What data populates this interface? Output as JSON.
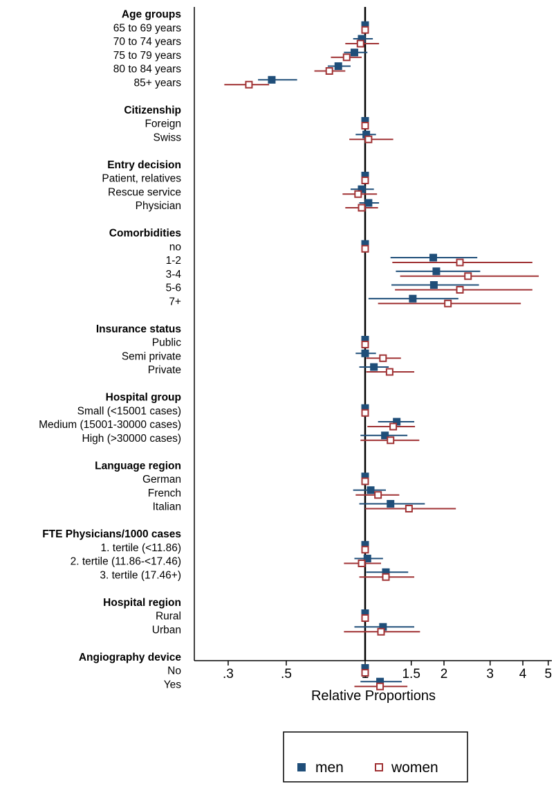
{
  "colors": {
    "men": "#1f4e79",
    "women": "#a03234"
  },
  "chart_data": {
    "type": "forest",
    "xlabel": "Relative Proportions",
    "x_scale": "log",
    "xlim": [
      0.24,
      5.1
    ],
    "x_ticks": [
      0.3,
      0.5,
      1,
      1.5,
      2,
      3,
      4,
      5
    ],
    "x_tick_labels": [
      ".3",
      ".5",
      "1",
      "1.5",
      "2",
      "3",
      "4",
      "5"
    ],
    "reference_line": 1,
    "legend": {
      "position": "bottom",
      "entries": [
        "men",
        "women"
      ]
    },
    "groups": [
      {
        "title": "Age groups",
        "rows": [
          {
            "label": "65 to 69 years",
            "men": [
              1.0,
              1.0,
              1.0
            ],
            "women": [
              1.0,
              1.0,
              1.0
            ]
          },
          {
            "label": "70 to 74 years",
            "men": [
              0.97,
              0.9,
              1.07
            ],
            "women": [
              0.96,
              0.84,
              1.13
            ]
          },
          {
            "label": "75 to 79 years",
            "men": [
              0.91,
              0.83,
              1.02
            ],
            "women": [
              0.85,
              0.74,
              0.97
            ]
          },
          {
            "label": "80 to 84 years",
            "men": [
              0.79,
              0.72,
              0.88
            ],
            "women": [
              0.73,
              0.64,
              0.84
            ]
          },
          {
            "label": "85+ years",
            "men": [
              0.44,
              0.39,
              0.55
            ],
            "women": [
              0.36,
              0.29,
              0.43
            ]
          }
        ]
      },
      {
        "title": "Citizenship",
        "rows": [
          {
            "label": "Foreign",
            "men": [
              1.0,
              1.0,
              1.0
            ],
            "women": [
              1.0,
              1.0,
              1.0
            ]
          },
          {
            "label": "Swiss",
            "men": [
              1.01,
              0.92,
              1.1
            ],
            "women": [
              1.03,
              0.87,
              1.28
            ]
          }
        ]
      },
      {
        "title": "Entry decision",
        "rows": [
          {
            "label": "Patient, relatives",
            "men": [
              1.0,
              1.0,
              1.0
            ],
            "women": [
              1.0,
              1.0,
              1.0
            ]
          },
          {
            "label": "Rescue service",
            "men": [
              0.97,
              0.88,
              1.08
            ],
            "women": [
              0.94,
              0.82,
              1.11
            ]
          },
          {
            "label": "Physician",
            "men": [
              1.03,
              0.95,
              1.13
            ],
            "women": [
              0.97,
              0.84,
              1.12
            ]
          }
        ]
      },
      {
        "title": "Comorbidities",
        "rows": [
          {
            "label": "no",
            "men": [
              1.0,
              1.0,
              1.0
            ],
            "women": [
              1.0,
              1.0,
              1.0
            ]
          },
          {
            "label": "1-2",
            "men": [
              1.82,
              1.25,
              2.68
            ],
            "women": [
              2.3,
              1.27,
              4.35
            ]
          },
          {
            "label": "3-4",
            "men": [
              1.87,
              1.31,
              2.75
            ],
            "women": [
              2.47,
              1.36,
              4.6
            ]
          },
          {
            "label": "5-6",
            "men": [
              1.83,
              1.26,
              2.72
            ],
            "women": [
              2.3,
              1.3,
              4.35
            ]
          },
          {
            "label": "7+",
            "men": [
              1.52,
              1.03,
              2.27
            ],
            "women": [
              2.07,
              1.12,
              3.93
            ]
          }
        ]
      },
      {
        "title": "Insurance status",
        "rows": [
          {
            "label": "Public",
            "men": [
              1.0,
              1.0,
              1.0
            ],
            "women": [
              1.0,
              1.0,
              1.0
            ]
          },
          {
            "label": "Semi private",
            "men": [
              1.0,
              0.92,
              1.1
            ],
            "women": [
              1.17,
              1.01,
              1.37
            ]
          },
          {
            "label": "Private",
            "men": [
              1.08,
              0.95,
              1.23
            ],
            "women": [
              1.24,
              1.01,
              1.54
            ]
          }
        ]
      },
      {
        "title": "Hospital group",
        "rows": [
          {
            "label": "Small (<15001 cases)",
            "men": [
              1.0,
              1.0,
              1.0
            ],
            "women": [
              1.0,
              1.0,
              1.0
            ]
          },
          {
            "label": "Medium (15001-30000 cases)",
            "men": [
              1.32,
              1.12,
              1.54
            ],
            "women": [
              1.28,
              1.02,
              1.55
            ]
          },
          {
            "label": "High (>30000 cases)",
            "men": [
              1.19,
              0.96,
              1.45
            ],
            "women": [
              1.25,
              0.96,
              1.61
            ]
          }
        ]
      },
      {
        "title": "Language region",
        "rows": [
          {
            "label": "German",
            "men": [
              1.0,
              1.0,
              1.0
            ],
            "women": [
              1.0,
              1.0,
              1.0
            ]
          },
          {
            "label": "French",
            "men": [
              1.05,
              0.9,
              1.2
            ],
            "women": [
              1.12,
              0.92,
              1.35
            ]
          },
          {
            "label": "Italian",
            "men": [
              1.25,
              0.95,
              1.69
            ],
            "women": [
              1.47,
              1.0,
              2.22
            ]
          }
        ]
      },
      {
        "title": "FTE Physicians/1000 cases",
        "rows": [
          {
            "label": "1. tertile (<11.86)",
            "men": [
              1.0,
              1.0,
              1.0
            ],
            "women": [
              1.0,
              1.0,
              1.0
            ]
          },
          {
            "label": "2. tertile (11.86-<17.46)",
            "men": [
              1.02,
              0.91,
              1.17
            ],
            "women": [
              0.97,
              0.83,
              1.15
            ]
          },
          {
            "label": "3. tertile (17.46+)",
            "men": [
              1.2,
              1.01,
              1.46
            ],
            "women": [
              1.2,
              0.95,
              1.54
            ]
          }
        ]
      },
      {
        "title": "Hospital region",
        "rows": [
          {
            "label": "Rural",
            "men": [
              1.0,
              1.0,
              1.0
            ],
            "women": [
              1.0,
              1.0,
              1.0
            ]
          },
          {
            "label": "Urban",
            "men": [
              1.17,
              0.91,
              1.54
            ],
            "women": [
              1.15,
              0.83,
              1.62
            ]
          }
        ]
      },
      {
        "title": "Angiography device",
        "rows": [
          {
            "label": "No",
            "men": [
              1.0,
              1.0,
              1.0
            ],
            "women": [
              1.0,
              1.0,
              1.0
            ]
          },
          {
            "label": "Yes",
            "men": [
              1.14,
              0.96,
              1.38
            ],
            "women": [
              1.14,
              0.91,
              1.45
            ]
          }
        ]
      }
    ]
  }
}
